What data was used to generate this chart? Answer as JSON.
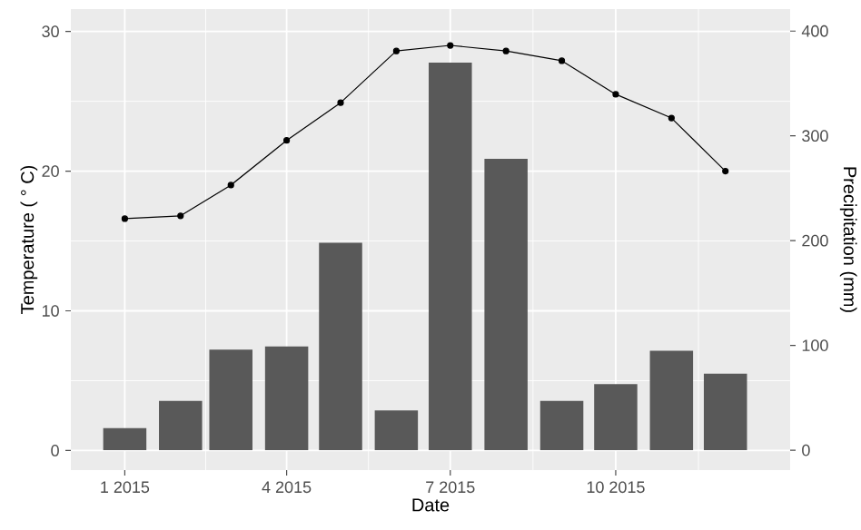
{
  "chart_data": {
    "type": "bar",
    "xlabel": "Date",
    "ylabel": "Temperature ( ° C)",
    "y2label": "Precipitation (mm)",
    "x": [
      "2015-01",
      "2015-02",
      "2015-03",
      "2015-04",
      "2015-05",
      "2015-06",
      "2015-07",
      "2015-08",
      "2015-09",
      "2015-10",
      "2015-11",
      "2015-12"
    ],
    "series": [
      {
        "axis": "y2",
        "color": "#595959",
        "values": [
          21,
          47,
          96,
          99,
          198,
          38,
          370,
          278,
          47,
          63,
          95,
          73
        ]
      },
      {
        "type": "line",
        "color": "#000000",
        "values": [
          16.6,
          16.8,
          19.0,
          22.2,
          24.9,
          28.6,
          29.0,
          28.6,
          27.9,
          25.5,
          23.8,
          20.0
        ]
      }
    ],
    "xlim": [
      "2014-12-02",
      "2016-01-06"
    ],
    "xticks": [
      {
        "value": "2015-01",
        "label": "1 2015"
      },
      {
        "value": "2015-04",
        "label": "4 2015"
      },
      {
        "value": "2015-07",
        "label": "7 2015"
      },
      {
        "value": "2015-10",
        "label": "10 2015"
      }
    ],
    "ylim": [
      -1.4,
      31.6
    ],
    "yticks": [
      0,
      10,
      20,
      30
    ],
    "y2lim": [
      -19,
      421
    ],
    "y2ticks": [
      0,
      100,
      200,
      300,
      400
    ],
    "grid": true,
    "marker": "circle",
    "line_style": "solid"
  }
}
